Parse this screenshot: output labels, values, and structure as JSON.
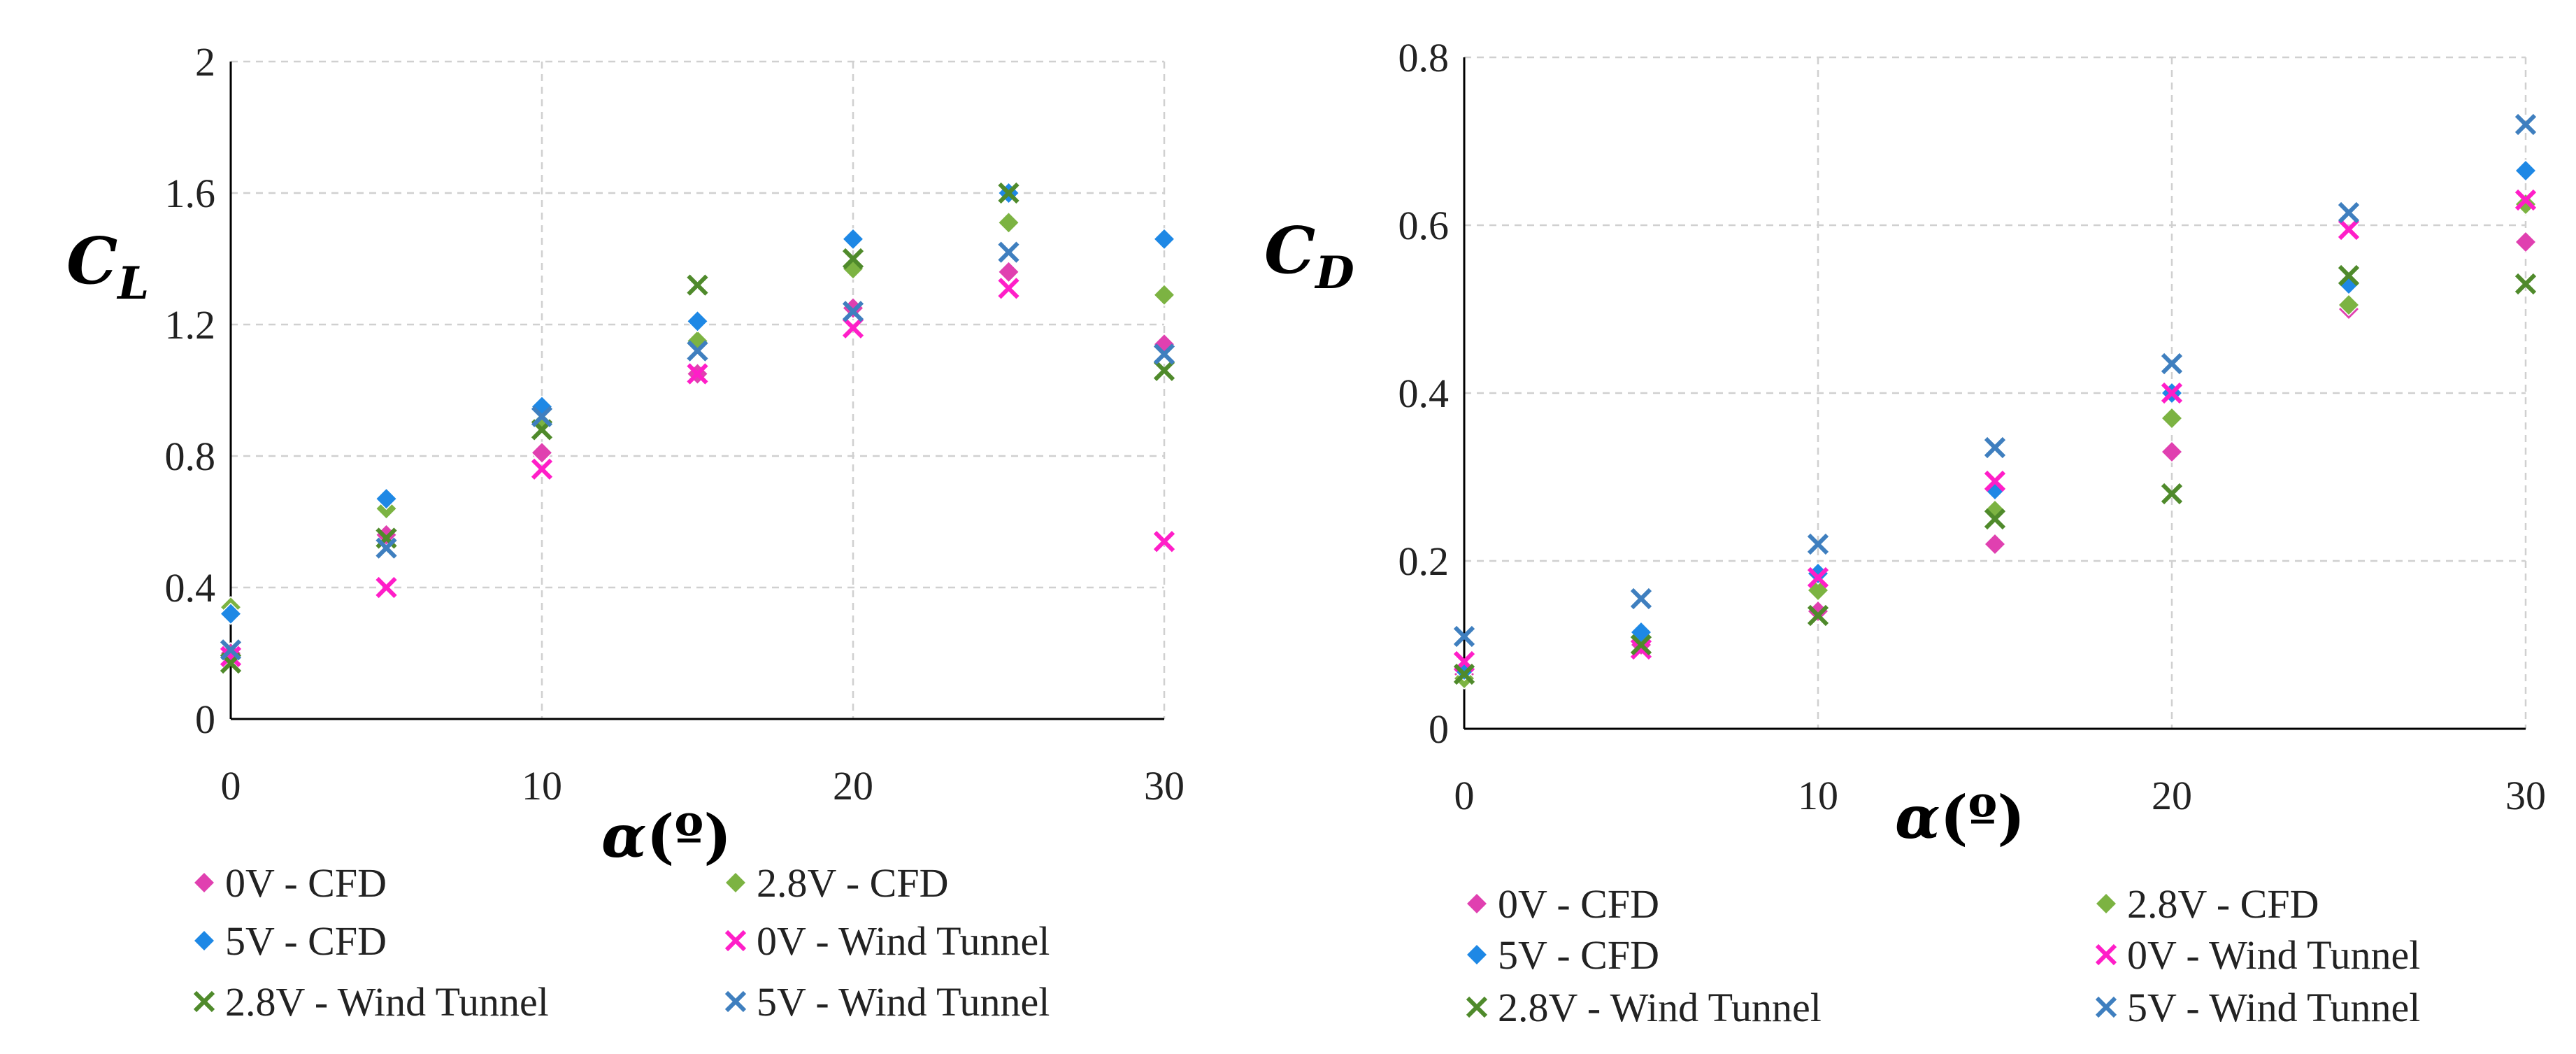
{
  "chart_data": [
    {
      "type": "scatter",
      "title": "",
      "xlabel": "α(º)",
      "ylabel": "C_L",
      "xlabel_parts": {
        "symbol": "α",
        "unit": "(º)"
      },
      "ylabel_parts": {
        "base": "C",
        "sub": "L"
      },
      "xlim": [
        0,
        30
      ],
      "ylim": [
        0,
        2
      ],
      "xticks": [
        "0",
        "10",
        "20",
        "30"
      ],
      "yticks": [
        "0",
        "0.4",
        "0.8",
        "1.2",
        "1.6",
        "2"
      ],
      "x": [
        0,
        5,
        10,
        15,
        20,
        25,
        30
      ],
      "grid": true,
      "legend_position": "bottom",
      "series": [
        {
          "name": "0V - CFD",
          "marker": "diamond",
          "color": "#e040b0",
          "values": [
            0.2,
            0.56,
            0.81,
            1.05,
            1.25,
            1.36,
            1.14
          ]
        },
        {
          "name": "2.8V - CFD",
          "marker": "diamond",
          "color": "#7cb342",
          "values": [
            0.34,
            0.64,
            0.9,
            1.15,
            1.37,
            1.51,
            1.29
          ]
        },
        {
          "name": "5V - CFD",
          "marker": "diamond",
          "color": "#1e88e5",
          "values": [
            0.32,
            0.67,
            0.95,
            1.21,
            1.46,
            1.6,
            1.46
          ]
        },
        {
          "name": "0V - Wind Tunnel",
          "marker": "x",
          "color": "#ff1ec8",
          "values": [
            0.19,
            0.4,
            0.76,
            1.05,
            1.19,
            1.31,
            0.54
          ]
        },
        {
          "name": "2.8V - Wind Tunnel",
          "marker": "x",
          "color": "#4f8a2b",
          "values": [
            0.17,
            0.55,
            0.88,
            1.32,
            1.4,
            1.6,
            1.06
          ]
        },
        {
          "name": "5V - Wind Tunnel",
          "marker": "x",
          "color": "#3f7fbf",
          "values": [
            0.21,
            0.52,
            0.92,
            1.12,
            1.24,
            1.42,
            1.11
          ]
        }
      ]
    },
    {
      "type": "scatter",
      "title": "",
      "xlabel": "α(º)",
      "ylabel": "C_D",
      "xlabel_parts": {
        "symbol": "α",
        "unit": "(º)"
      },
      "ylabel_parts": {
        "base": "C",
        "sub": "D"
      },
      "xlim": [
        0,
        30
      ],
      "ylim": [
        0,
        0.8
      ],
      "xticks": [
        "0",
        "10",
        "20",
        "30"
      ],
      "yticks": [
        "0",
        "0.2",
        "0.4",
        "0.6",
        "0.8"
      ],
      "x": [
        0,
        5,
        10,
        15,
        20,
        25,
        30
      ],
      "grid": true,
      "legend_position": "bottom",
      "series": [
        {
          "name": "0V - CFD",
          "marker": "diamond",
          "color": "#e040b0",
          "values": [
            0.065,
            0.1,
            0.14,
            0.22,
            0.33,
            0.5,
            0.58
          ]
        },
        {
          "name": "2.8V - CFD",
          "marker": "diamond",
          "color": "#7cb342",
          "values": [
            0.06,
            0.11,
            0.165,
            0.26,
            0.37,
            0.505,
            0.625
          ]
        },
        {
          "name": "5V - CFD",
          "marker": "diamond",
          "color": "#1e88e5",
          "values": [
            0.07,
            0.115,
            0.185,
            0.285,
            0.4,
            0.53,
            0.665
          ]
        },
        {
          "name": "0V - Wind Tunnel",
          "marker": "x",
          "color": "#ff1ec8",
          "values": [
            0.08,
            0.095,
            0.18,
            0.295,
            0.4,
            0.595,
            0.63
          ]
        },
        {
          "name": "2.8V - Wind Tunnel",
          "marker": "x",
          "color": "#4f8a2b",
          "values": [
            0.065,
            0.1,
            0.135,
            0.25,
            0.28,
            0.54,
            0.53
          ]
        },
        {
          "name": "5V - Wind Tunnel",
          "marker": "x",
          "color": "#3f7fbf",
          "values": [
            0.11,
            0.155,
            0.22,
            0.335,
            0.435,
            0.615,
            0.72
          ]
        }
      ]
    }
  ]
}
